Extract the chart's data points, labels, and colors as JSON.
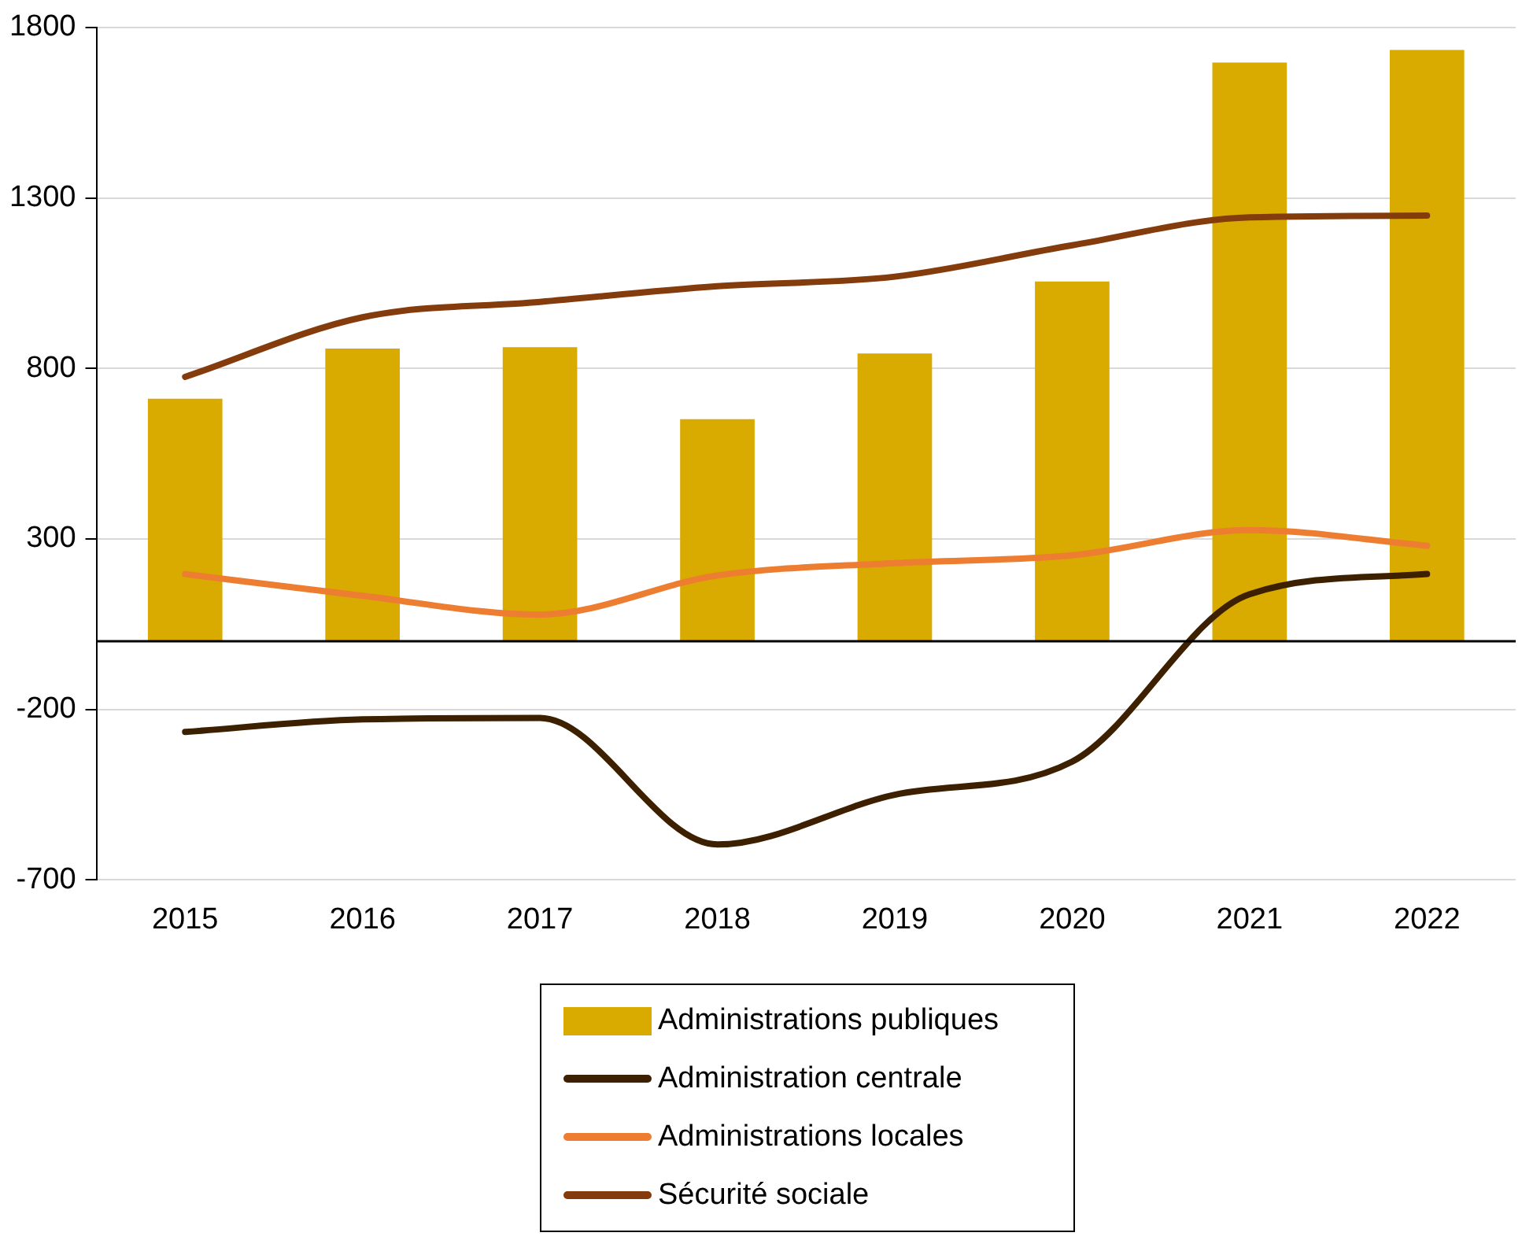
{
  "chart_data": {
    "type": "bar",
    "categories": [
      "2015",
      "2016",
      "2017",
      "2018",
      "2019",
      "2020",
      "2021",
      "2022"
    ],
    "series": [
      {
        "name": "Administrations publiques",
        "color": "#d9aa00",
        "values": [
          711,
          858,
          862,
          651,
          844,
          1055,
          1697,
          1734
        ]
      },
      {
        "name": "Administration centrale",
        "type": "line",
        "color": "#3d2000",
        "values": [
          -266,
          -229,
          -225,
          -596,
          -450,
          -353,
          138,
          197
        ]
      },
      {
        "name": "Administrations locales",
        "type": "line",
        "color": "#ed7d31",
        "values": [
          197,
          133,
          78,
          193,
          229,
          252,
          326,
          280
        ]
      },
      {
        "name": "Sécurité sociale",
        "type": "line",
        "color": "#843c0c",
        "values": [
          775,
          950,
          995,
          1041,
          1069,
          1161,
          1243,
          1248
        ]
      }
    ],
    "ylim": [
      -700,
      1800
    ],
    "yticks": [
      -700,
      -200,
      300,
      800,
      1300,
      1800
    ],
    "grid": "y",
    "legend": "bottom",
    "marker": "none",
    "line_style": "solid"
  }
}
